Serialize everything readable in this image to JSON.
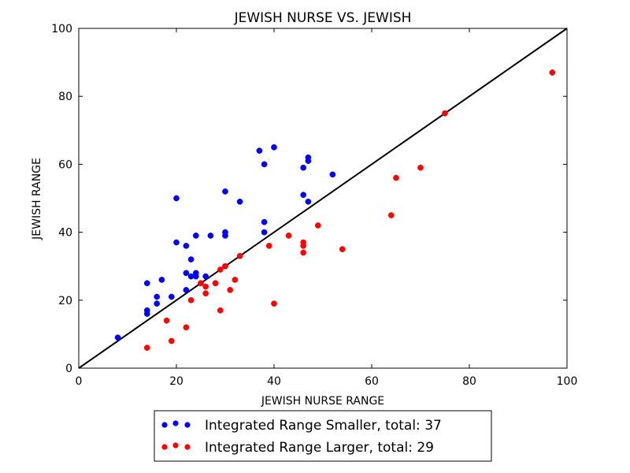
{
  "chart_data": {
    "type": "scatter",
    "title": "JEWISH NURSE VS. JEWISH",
    "xlabel": "JEWISH NURSE RANGE",
    "ylabel": "JEWISH RANGE",
    "xlim": [
      0,
      100
    ],
    "ylim": [
      0,
      100
    ],
    "xticks": [
      0,
      20,
      40,
      60,
      80,
      100
    ],
    "yticks": [
      0,
      20,
      40,
      60,
      80,
      100
    ],
    "grid": false,
    "legend_position": "bottom-center",
    "reference_line": {
      "from": [
        0,
        0
      ],
      "to": [
        100,
        100
      ],
      "color": "#000000"
    },
    "series": [
      {
        "name": "Integrated Range Smaller, total: 37",
        "color": "#0000ff",
        "points": [
          [
            8,
            9
          ],
          [
            14,
            25
          ],
          [
            14,
            17
          ],
          [
            14,
            16
          ],
          [
            16,
            21
          ],
          [
            16,
            19
          ],
          [
            17,
            26
          ],
          [
            19,
            21
          ],
          [
            20,
            50
          ],
          [
            20,
            37
          ],
          [
            22,
            36
          ],
          [
            22,
            28
          ],
          [
            22,
            23
          ],
          [
            23,
            32
          ],
          [
            23,
            27
          ],
          [
            24,
            39
          ],
          [
            24,
            28
          ],
          [
            24,
            27
          ],
          [
            26,
            27
          ],
          [
            27,
            39
          ],
          [
            30,
            52
          ],
          [
            30,
            40
          ],
          [
            30,
            39
          ],
          [
            33,
            49
          ],
          [
            37,
            64
          ],
          [
            38,
            60
          ],
          [
            38,
            43
          ],
          [
            38,
            40
          ],
          [
            40,
            65
          ],
          [
            46,
            59
          ],
          [
            46,
            51
          ],
          [
            47,
            62
          ],
          [
            47,
            61
          ],
          [
            47,
            49
          ],
          [
            52,
            57
          ],
          [
            30,
            30
          ],
          [
            25,
            25
          ]
        ]
      },
      {
        "name": "Integrated Range Larger, total: 29",
        "color": "#ff0000",
        "points": [
          [
            14,
            6
          ],
          [
            18,
            14
          ],
          [
            19,
            8
          ],
          [
            22,
            12
          ],
          [
            23,
            20
          ],
          [
            25,
            25
          ],
          [
            26,
            24
          ],
          [
            26,
            22
          ],
          [
            28,
            25
          ],
          [
            29,
            29
          ],
          [
            29,
            17
          ],
          [
            30,
            30
          ],
          [
            31,
            23
          ],
          [
            32,
            26
          ],
          [
            33,
            33
          ],
          [
            39,
            36
          ],
          [
            40,
            19
          ],
          [
            43,
            39
          ],
          [
            46,
            37
          ],
          [
            46,
            36
          ],
          [
            46,
            34
          ],
          [
            49,
            42
          ],
          [
            54,
            35
          ],
          [
            64,
            45
          ],
          [
            65,
            56
          ],
          [
            70,
            59
          ],
          [
            75,
            75
          ],
          [
            97,
            87
          ],
          [
            28,
            25
          ]
        ]
      }
    ]
  }
}
